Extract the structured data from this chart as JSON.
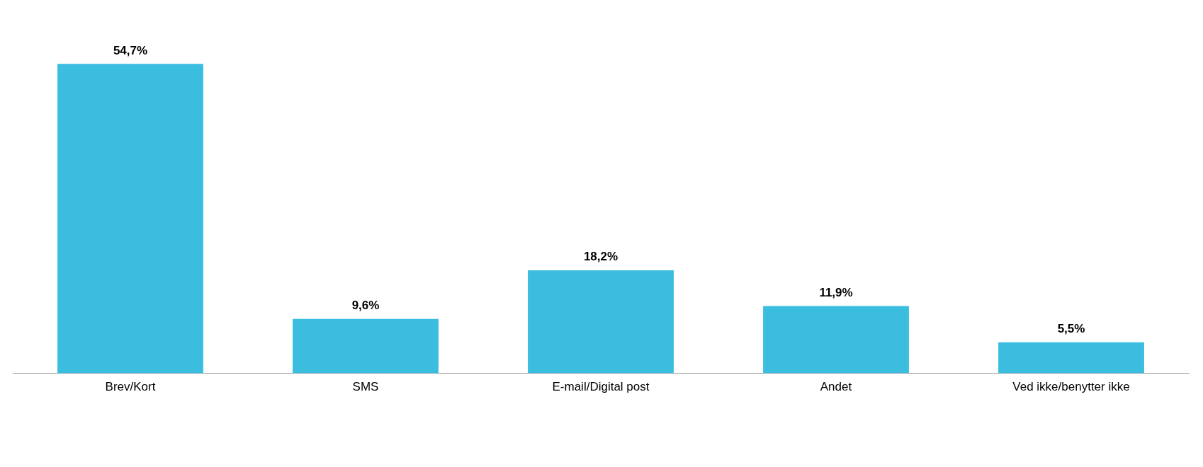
{
  "chart_data": {
    "type": "bar",
    "categories": [
      "Brev/Kort",
      "SMS",
      "E-mail/Digital post",
      "Andet",
      "Ved ikke/benytter ikke"
    ],
    "values": [
      54.7,
      9.6,
      18.2,
      11.9,
      5.5
    ],
    "value_labels": [
      "54,7%",
      "9,6%",
      "18,2%",
      "11,9%",
      "5,5%"
    ],
    "color": "#3bbde0",
    "grid": false,
    "legend": false
  }
}
